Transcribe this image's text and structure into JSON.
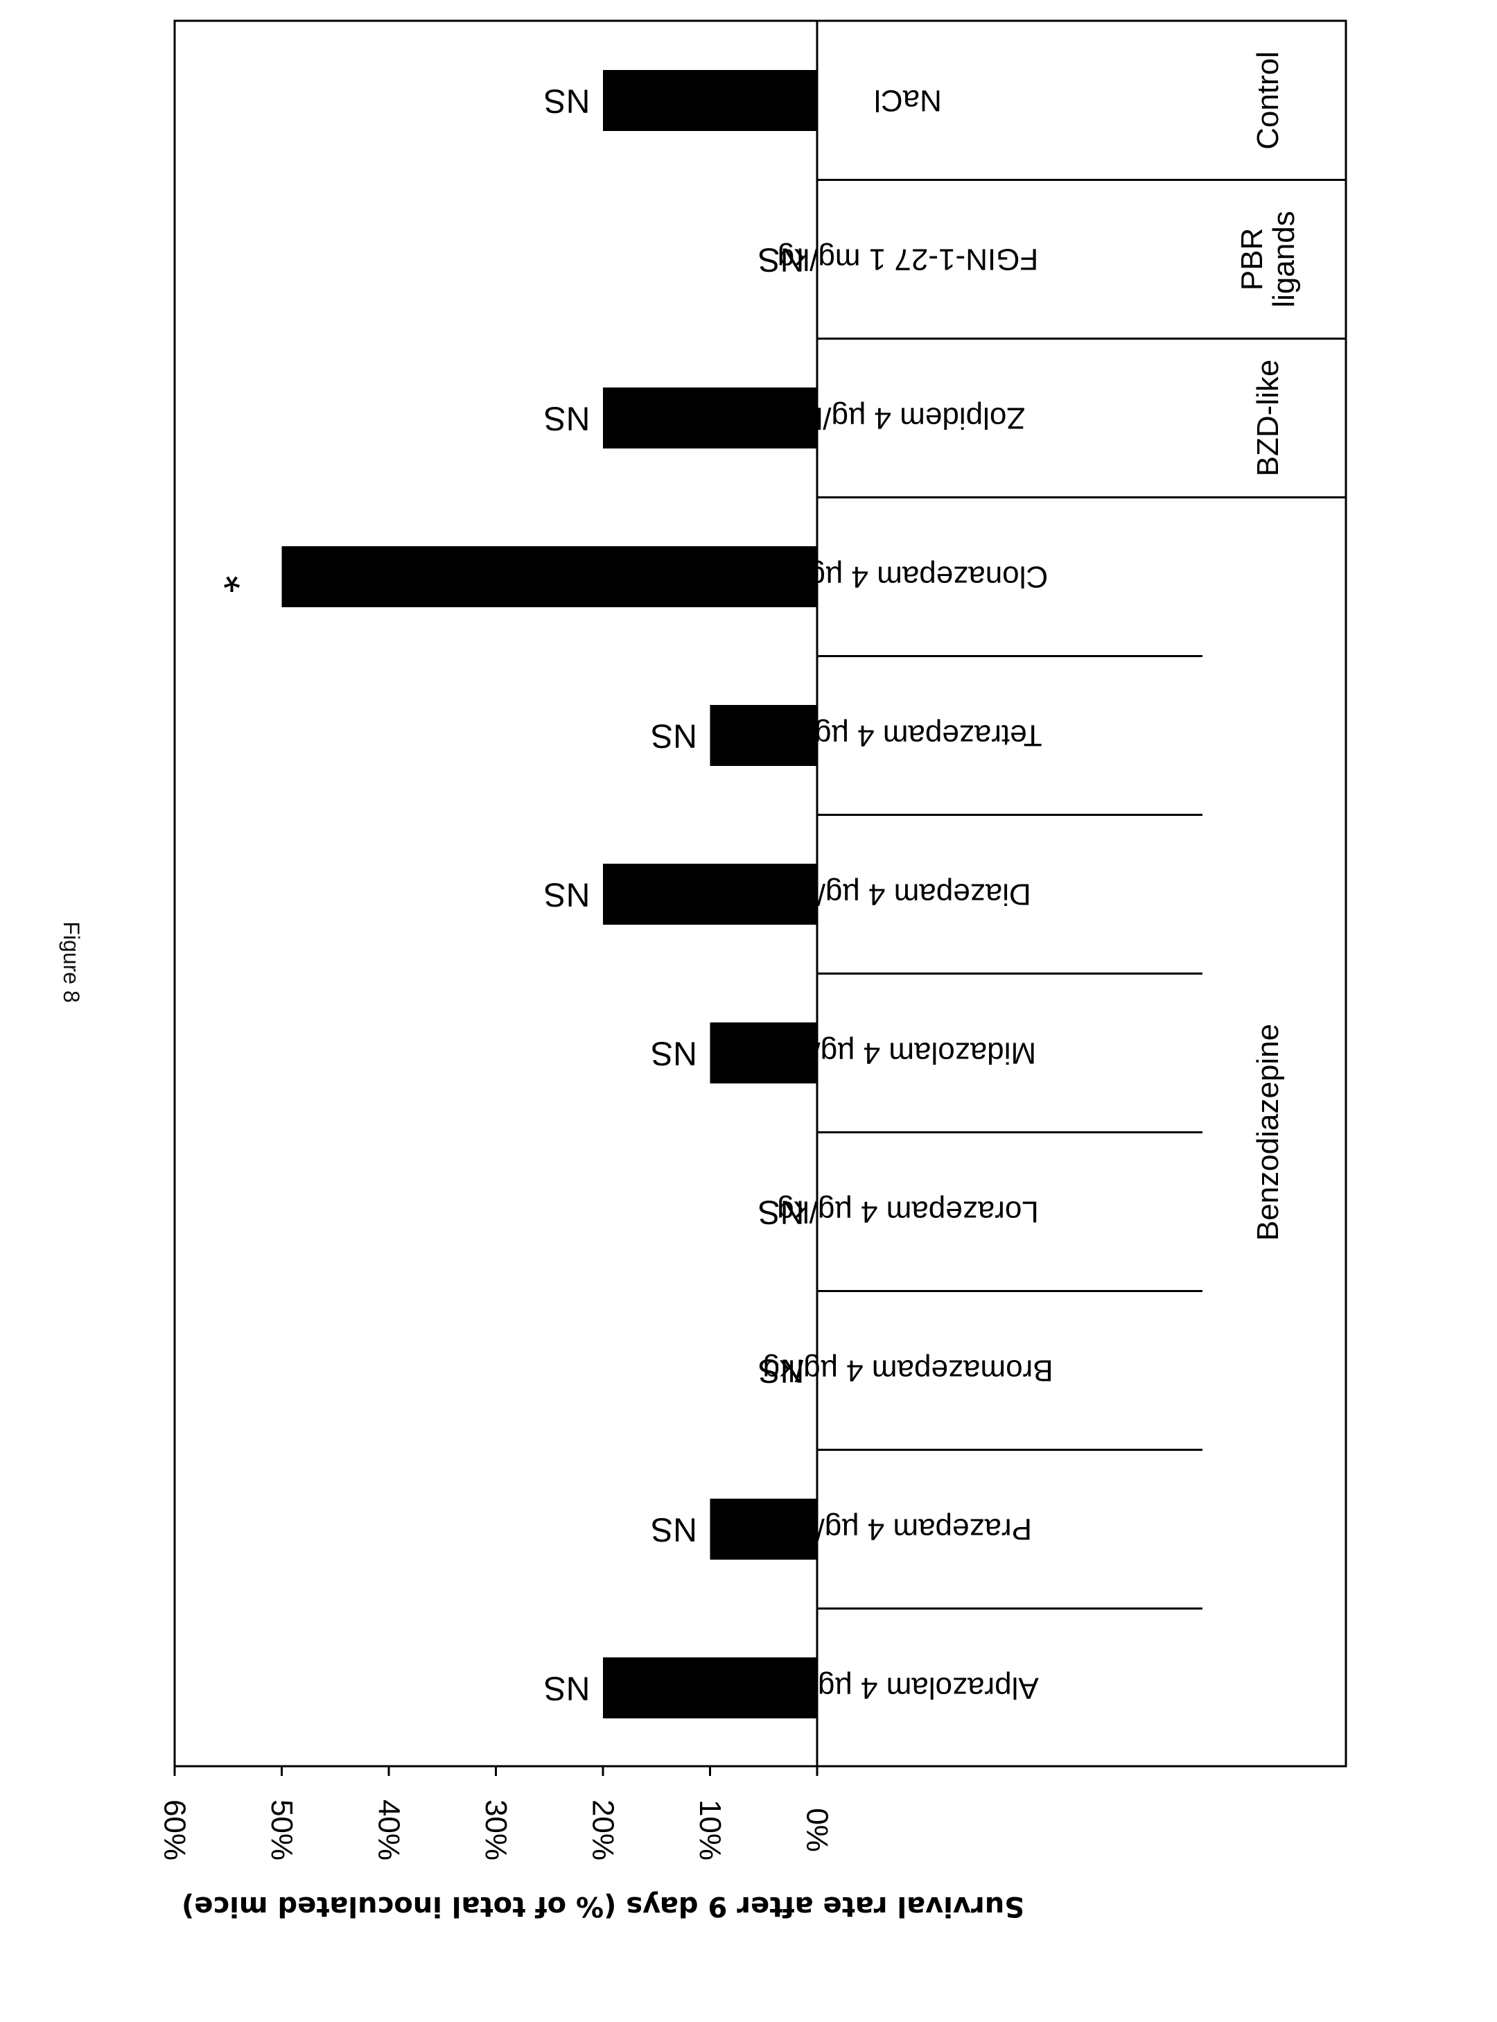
{
  "figure_label": "Figure 8",
  "chart_data": {
    "type": "bar",
    "orientation": "rotated-90",
    "ylabel": "Survival rate after 9 days (% of total inoculated mice)",
    "ylim": [
      0,
      60
    ],
    "yticks": [
      "0%",
      "10%",
      "20%",
      "30%",
      "40%",
      "50%",
      "60%"
    ],
    "categories": [
      "NaCl",
      "FGIN-1-27 1 mg/kg",
      "Zolpidem 4 µg/kg",
      "Clonazepam 4 µg/kg",
      "Tetrazepam 4 µg/kg",
      "Diazepam 4 µg/kg",
      "Midazolam 4 µg/kg",
      "Lorazepam 4 µg/kg",
      "Bromazepam 4 µg/kg",
      "Prazepam 4 µg/kg",
      "Alprazolam 4 µg/kg"
    ],
    "values": [
      20,
      0,
      20,
      50,
      10,
      20,
      10,
      0,
      0,
      10,
      20
    ],
    "significance": [
      "NS",
      "NS",
      "NS",
      "*",
      "NS",
      "NS",
      "NS",
      "NS",
      "NS",
      "NS",
      "NS"
    ],
    "groups": [
      {
        "label": "Control",
        "start": 0,
        "end": 0
      },
      {
        "label": "PBR ligands",
        "lines": [
          "PBR",
          "ligands"
        ],
        "start": 1,
        "end": 1
      },
      {
        "label": "BZD-like",
        "start": 2,
        "end": 2
      },
      {
        "label": "Benzodiazepine",
        "start": 3,
        "end": 10
      }
    ],
    "bar_color": "#000000",
    "grid": false
  }
}
